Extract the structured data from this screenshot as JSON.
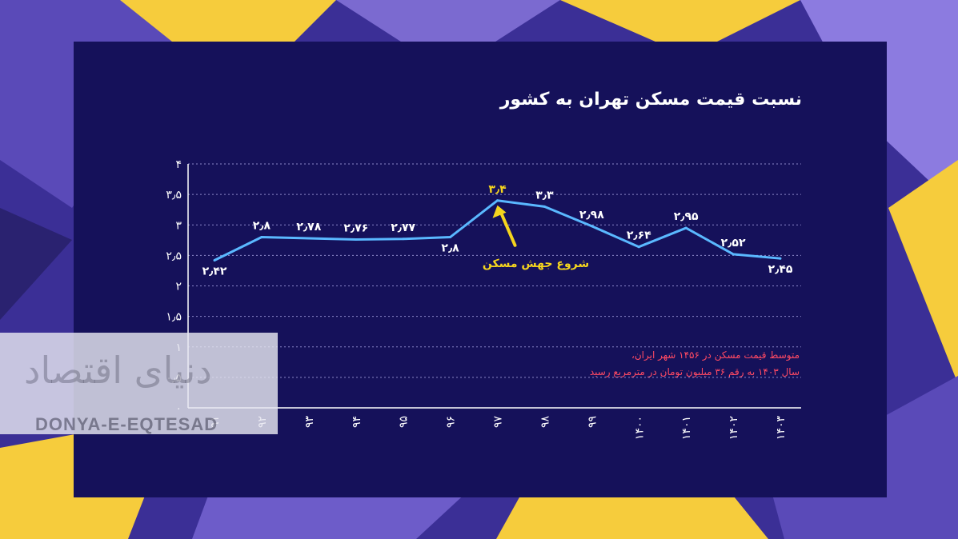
{
  "title": "نسبت قیمت مسکن تهران به کشور",
  "note": {
    "line1": "متوسط قیمت مسکن در ۱۴۵۶ شهر ایران،",
    "line2": "سال ۱۴۰۳ به رقم ۳۶ میلیون تومان در مترمربع رسید"
  },
  "annotation": {
    "text": "شروع جهش مسکن",
    "color": "#f5d51e"
  },
  "watermark": {
    "fa": "دنیای اقتصاد",
    "en": "DONYA-E-EQTESAD"
  },
  "colors": {
    "line": "#5ab8ff",
    "highlight": "#f5d51e",
    "note": "#ff4a63",
    "panel": "#15115a"
  },
  "chart_data": {
    "type": "line",
    "x": [
      "۹۱",
      "۹۲",
      "۹۳",
      "۹۴",
      "۹۵",
      "۹۶",
      "۹۷",
      "۹۸",
      "۹۹",
      "۱۴۰۰",
      "۱۴۰۱",
      "۱۴۰۲",
      "۱۴۰۳"
    ],
    "y": [
      2.42,
      2.8,
      2.78,
      2.76,
      2.77,
      2.8,
      3.4,
      3.3,
      2.98,
      2.64,
      2.95,
      2.52,
      2.45
    ],
    "data_labels": [
      "۲٫۴۲",
      "۲٫۸",
      "۲٫۷۸",
      "۲٫۷۶",
      "۲٫۷۷",
      "۲٫۸",
      "۳٫۴",
      "۳٫۳",
      "۲٫۹۸",
      "۲٫۶۴",
      "۲٫۹۵",
      "۲٫۵۲",
      "۲٫۴۵"
    ],
    "highlight_index": 6,
    "ylim": [
      0,
      4
    ],
    "yticks": [
      0,
      0.5,
      1,
      1.5,
      2,
      2.5,
      3,
      3.5,
      4
    ],
    "ytick_labels": [
      "۰",
      "۰٫۵",
      "۱",
      "۱٫۵",
      "۲",
      "۲٫۵",
      "۳",
      "۳٫۵",
      "۴"
    ],
    "grid": true
  }
}
